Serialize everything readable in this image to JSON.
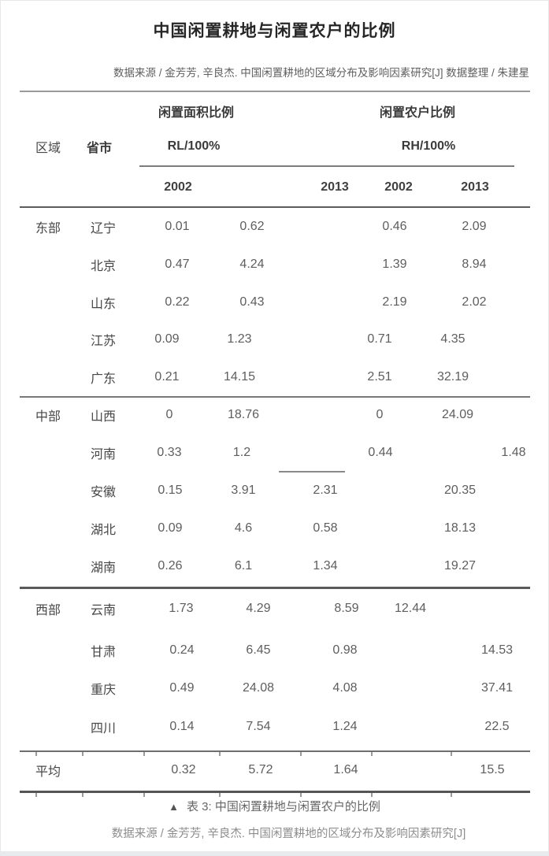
{
  "header": {
    "title": "中国闲置耕地与闲置农户的比例",
    "source_line": "数据来源 / 金芳芳, 辛良杰. 中国闲置耕地的区域分布及影响因素研究[J] 数据整理 / 朱建星"
  },
  "table": {
    "col_region": "区域",
    "col_province": "省市",
    "group1_label": "闲置面积比例",
    "group1_unit": "RL/100%",
    "group2_label": "闲置农户比例",
    "group2_unit": "RH/100%",
    "year_headers": [
      "2002",
      "2013",
      "2002",
      "2013"
    ],
    "rows": [
      {
        "region": "东部",
        "province": "辽宁",
        "values": [
          "0.01",
          "0.62",
          "0.46",
          "2.09"
        ]
      },
      {
        "region": "",
        "province": "北京",
        "values": [
          "0.47",
          "4.24",
          "1.39",
          "8.94"
        ]
      },
      {
        "region": "",
        "province": "山东",
        "values": [
          "0.22",
          "0.43",
          "2.19",
          "2.02"
        ]
      },
      {
        "region": "",
        "province": "江苏",
        "values": [
          "0.09",
          "1.23",
          "0.71",
          "4.35"
        ]
      },
      {
        "region": "",
        "province": "广东",
        "values": [
          "0.21",
          "14.15",
          "2.51",
          "32.19"
        ]
      },
      {
        "region": "中部",
        "province": "山西",
        "values": [
          "0",
          "18.76",
          "0",
          "24.09"
        ]
      },
      {
        "region": "",
        "province": "河南",
        "values": [
          "0.33",
          "1.2",
          "0.44",
          "1.48"
        ]
      },
      {
        "region": "",
        "province": "安徽",
        "values": [
          "0.15",
          "3.91",
          "2.31",
          "20.35"
        ]
      },
      {
        "region": "",
        "province": "湖北",
        "values": [
          "0.09",
          "4.6",
          "0.58",
          "18.13"
        ]
      },
      {
        "region": "",
        "province": "湖南",
        "values": [
          "0.26",
          "6.1",
          "1.34",
          "19.27"
        ]
      },
      {
        "region": "西部",
        "province": "云南",
        "values": [
          "1.73",
          "4.29",
          "8.59",
          "12.44"
        ]
      },
      {
        "region": "",
        "province": "甘肃",
        "values": [
          "0.24",
          "6.45",
          "0.98",
          "14.53"
        ]
      },
      {
        "region": "",
        "province": "重庆",
        "values": [
          "0.49",
          "24.08",
          "4.08",
          "37.41"
        ]
      },
      {
        "region": "",
        "province": "四川",
        "values": [
          "0.14",
          "7.54",
          "1.24",
          "22.5"
        ]
      },
      {
        "region": "平均",
        "province": "",
        "values": [
          "0.32",
          "5.72",
          "1.64",
          "15.5"
        ]
      }
    ]
  },
  "caption": {
    "marker": "▲",
    "text": "表 3: 中国闲置耕地与闲置农户的比例"
  },
  "footer": {
    "source_line": "数据来源 / 金芳芳, 辛良杰. 中国闲置耕地的区域分布及影响因素研究[J]"
  },
  "colors": {
    "text_title": "#262626",
    "text_body": "#5e5e5e",
    "rule_dark": "#555555",
    "rule_light": "#8a8a8a",
    "bottom_edge": "#e7ebee"
  },
  "chart_data": {
    "type": "table",
    "title": "中国闲置耕地与闲置农户的比例",
    "caption": "表 3: 中国闲置耕地与闲置农户的比例",
    "column_groups": [
      {
        "label": "闲置面积比例",
        "unit": "RL/100%",
        "years": [
          "2002",
          "2013"
        ]
      },
      {
        "label": "闲置农户比例",
        "unit": "RH/100%",
        "years": [
          "2002",
          "2013"
        ]
      }
    ],
    "columns": [
      "区域",
      "省市",
      "RL_2002",
      "RL_2013",
      "RH_2002",
      "RH_2013"
    ],
    "rows": [
      [
        "东部",
        "辽宁",
        0.01,
        0.62,
        0.46,
        2.09
      ],
      [
        "东部",
        "北京",
        0.47,
        4.24,
        1.39,
        8.94
      ],
      [
        "东部",
        "山东",
        0.22,
        0.43,
        2.19,
        2.02
      ],
      [
        "东部",
        "江苏",
        0.09,
        1.23,
        0.71,
        4.35
      ],
      [
        "东部",
        "广东",
        0.21,
        14.15,
        2.51,
        32.19
      ],
      [
        "中部",
        "山西",
        0,
        18.76,
        0,
        24.09
      ],
      [
        "中部",
        "河南",
        0.33,
        1.2,
        0.44,
        1.48
      ],
      [
        "中部",
        "安徽",
        0.15,
        3.91,
        2.31,
        20.35
      ],
      [
        "中部",
        "湖北",
        0.09,
        4.6,
        0.58,
        18.13
      ],
      [
        "中部",
        "湖南",
        0.26,
        6.1,
        1.34,
        19.27
      ],
      [
        "西部",
        "云南",
        1.73,
        4.29,
        8.59,
        12.44
      ],
      [
        "西部",
        "甘肃",
        0.24,
        6.45,
        0.98,
        14.53
      ],
      [
        "西部",
        "重庆",
        0.49,
        24.08,
        4.08,
        37.41
      ],
      [
        "西部",
        "四川",
        0.14,
        7.54,
        1.24,
        22.5
      ],
      [
        "平均",
        "",
        0.32,
        5.72,
        1.64,
        15.5
      ]
    ]
  }
}
